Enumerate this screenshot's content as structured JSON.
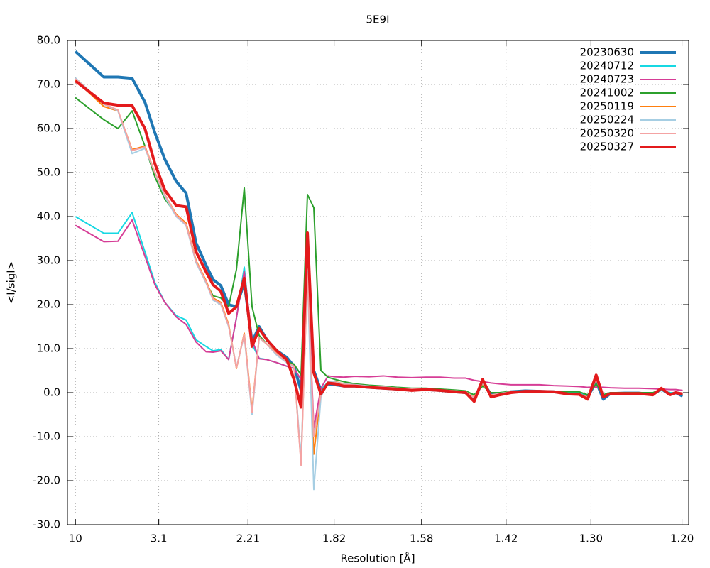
{
  "chart_data": {
    "type": "line",
    "title": "5E9I",
    "xlabel": "Resolution [Å]",
    "ylabel": "<I/sigI>",
    "grid": true,
    "legend": "top-right",
    "xlim": [
      0.001,
      0.702
    ],
    "ylim": [
      -30,
      80
    ],
    "xticks": [
      {
        "value": 0.01,
        "label": "10"
      },
      {
        "value": 0.10406,
        "label": "3.1"
      },
      {
        "value": 0.20475,
        "label": "2.21"
      },
      {
        "value": 0.3019,
        "label": "1.82"
      },
      {
        "value": 0.40058,
        "label": "1.58"
      },
      {
        "value": 0.49593,
        "label": "1.42"
      },
      {
        "value": 0.59172,
        "label": "1.30"
      },
      {
        "value": 0.69444,
        "label": "1.20"
      }
    ],
    "yticks": [
      {
        "value": -30,
        "label": "-30.0"
      },
      {
        "value": -20,
        "label": "-20.0"
      },
      {
        "value": -10,
        "label": "-10.0"
      },
      {
        "value": 0,
        "label": "0.0"
      },
      {
        "value": 10,
        "label": "10.0"
      },
      {
        "value": 20,
        "label": "20.0"
      },
      {
        "value": 30,
        "label": "30.0"
      },
      {
        "value": 40,
        "label": "40.0"
      },
      {
        "value": 50,
        "label": "50.0"
      },
      {
        "value": 60,
        "label": "60.0"
      },
      {
        "value": 70,
        "label": "70.0"
      },
      {
        "value": 80,
        "label": "80.0"
      }
    ],
    "x": [
      0.01,
      0.042,
      0.058,
      0.074,
      0.0884,
      0.0997,
      0.1109,
      0.1237,
      0.1349,
      0.1461,
      0.1573,
      0.1653,
      0.1741,
      0.1829,
      0.1917,
      0.2005,
      0.2093,
      0.2173,
      0.2261,
      0.2373,
      0.2485,
      0.2566,
      0.2646,
      0.2718,
      0.279,
      0.287,
      0.295,
      0.303,
      0.3126,
      0.3254,
      0.3414,
      0.3574,
      0.3734,
      0.3894,
      0.4055,
      0.4215,
      0.4375,
      0.4503,
      0.4599,
      0.4695,
      0.4791,
      0.4887,
      0.5015,
      0.5175,
      0.5335,
      0.5495,
      0.5656,
      0.5784,
      0.588,
      0.5976,
      0.6056,
      0.6136,
      0.6296,
      0.6456,
      0.6616,
      0.6712,
      0.6808,
      0.6872,
      0.6952
    ],
    "series": [
      {
        "name": "20230630",
        "color": "#1f77b4",
        "width": 4,
        "values": [
          77.5,
          71.7,
          71.7,
          71.4,
          66,
          59,
          53,
          48,
          45.3,
          34,
          29,
          25.7,
          24.3,
          20,
          19.5,
          25,
          11.5,
          15,
          12,
          9.5,
          8,
          6,
          0.5,
          27,
          5,
          0.5,
          2,
          1.8,
          1.5,
          1.5,
          1.2,
          1,
          0.8,
          0.6,
          0.7,
          0.5,
          0.2,
          0,
          -1.5,
          2.5,
          -0.5,
          -0.3,
          0.2,
          0.4,
          0.3,
          0.2,
          -0.2,
          -0.3,
          -1,
          2.5,
          -1.5,
          -0.2,
          -0.1,
          -0.1,
          -0.4,
          0.8,
          -0.4,
          0,
          -0.8
        ]
      },
      {
        "name": "20240712",
        "color": "#17d8e3",
        "width": 2,
        "values": [
          40,
          36.2,
          36.2,
          40.9,
          32,
          25,
          20.5,
          17.5,
          16.5,
          12,
          10.5,
          9.5,
          9.8,
          7.5,
          17,
          28.5,
          11,
          7.8,
          7.5,
          6.8,
          6,
          5.5,
          3,
          27.5,
          -10,
          0.5,
          2.5,
          2,
          1.5,
          1.5,
          1.2,
          1,
          0.9,
          0.6,
          0.7,
          0.6,
          0.3,
          0.2,
          -0.5,
          1.5,
          0,
          0,
          0.2,
          0.3,
          0.3,
          0.2,
          0,
          0,
          -0.5,
          2,
          -0.5,
          0,
          0,
          0,
          -0.2,
          0.5,
          0,
          0,
          -0.2
        ]
      },
      {
        "name": "20240723",
        "color": "#d63d96",
        "width": 2,
        "values": [
          38,
          34.3,
          34.4,
          39.2,
          31,
          24.5,
          20.5,
          17.2,
          15.5,
          11.5,
          9.3,
          9.2,
          9.5,
          7.5,
          17,
          27.5,
          12,
          7.7,
          7.5,
          6.8,
          6,
          5.5,
          3,
          27,
          -8,
          1,
          3.8,
          3.6,
          3.5,
          3.7,
          3.6,
          3.8,
          3.5,
          3.4,
          3.5,
          3.5,
          3.3,
          3.3,
          2.8,
          2.5,
          2.2,
          2,
          1.8,
          1.8,
          1.8,
          1.6,
          1.5,
          1.4,
          1.2,
          1.3,
          1.2,
          1.1,
          1,
          1,
          0.9,
          0.8,
          0.7,
          0.7,
          0.5
        ]
      },
      {
        "name": "20241002",
        "color": "#2ca02c",
        "width": 2,
        "values": [
          67,
          62,
          60,
          64,
          56,
          49,
          44,
          40.5,
          38,
          30,
          25,
          22,
          21.5,
          19.5,
          28,
          46.5,
          19.5,
          13,
          11,
          9,
          7,
          6.5,
          4,
          45,
          42,
          5,
          3.5,
          3,
          2.5,
          2,
          1.7,
          1.5,
          1.2,
          1,
          1,
          0.8,
          0.6,
          0.4,
          -0.5,
          1.5,
          0,
          0,
          0.3,
          0.4,
          0.3,
          0.3,
          0.2,
          0.2,
          -0.5,
          2,
          -0.5,
          0,
          0,
          0,
          0,
          0.8,
          -0.2,
          0,
          -0.5
        ]
      },
      {
        "name": "20250119",
        "color": "#ff7f0e",
        "width": 2,
        "values": [
          71,
          65,
          64,
          55.2,
          56,
          50,
          45,
          40.5,
          38.5,
          30,
          25.5,
          21.5,
          20.5,
          15.5,
          5.5,
          13.5,
          -4,
          12.5,
          11,
          9,
          7,
          6,
          -16,
          27.5,
          -14,
          0,
          2.5,
          2.5,
          2,
          1.8,
          1.5,
          1.3,
          1,
          0.8,
          0.8,
          0.6,
          0.4,
          0.2,
          -1,
          2,
          -0.5,
          -0.2,
          0.2,
          0.3,
          0.3,
          0.2,
          -0.2,
          -0.3,
          -1,
          3,
          -0.8,
          -0.2,
          -0.2,
          -0.2,
          -0.4,
          1,
          -0.4,
          0,
          -0.3
        ]
      },
      {
        "name": "20250224",
        "color": "#a6cee3",
        "width": 2,
        "values": [
          71.5,
          65.5,
          64,
          54.3,
          55.5,
          50,
          44.5,
          40,
          38,
          29.5,
          25,
          21,
          20,
          15,
          5.8,
          13,
          -5,
          12.5,
          11,
          8.5,
          6.8,
          5.8,
          -15,
          27.5,
          -22,
          -1,
          2.5,
          2.4,
          2,
          1.8,
          1.5,
          1.3,
          1,
          0.8,
          0.8,
          0.6,
          0.4,
          0.2,
          -1.2,
          2.2,
          -0.6,
          -0.2,
          0.2,
          0.3,
          0.3,
          0.2,
          -0.2,
          -0.3,
          -1.2,
          3.2,
          -0.9,
          -0.2,
          -0.2,
          -0.2,
          -0.4,
          1,
          -0.4,
          0,
          -0.3
        ]
      },
      {
        "name": "20250320",
        "color": "#f4a3a3",
        "width": 2,
        "values": [
          71.3,
          65.6,
          64.2,
          55,
          55.8,
          50,
          45,
          40.3,
          38.2,
          29.8,
          25.2,
          21.3,
          20.2,
          15.2,
          5.6,
          13.3,
          -4.5,
          12.6,
          11,
          8.8,
          7,
          6,
          -16.5,
          27,
          -10,
          -0.5,
          2.3,
          2.3,
          1.9,
          1.7,
          1.4,
          1.2,
          1,
          0.8,
          0.8,
          0.6,
          0.4,
          0.2,
          -1.1,
          2.4,
          -0.6,
          -0.3,
          0.1,
          0.3,
          0.3,
          0.2,
          -0.2,
          -0.3,
          -1.1,
          3.1,
          -0.8,
          -0.2,
          -0.2,
          -0.2,
          -0.4,
          1.1,
          -0.4,
          0,
          -0.3
        ]
      },
      {
        "name": "20250327",
        "color": "#e31a1c",
        "width": 4,
        "values": [
          70.8,
          65.8,
          65.3,
          65.2,
          60,
          52,
          46,
          42.5,
          42.2,
          32,
          27.5,
          24.5,
          23,
          18,
          19.5,
          26,
          10.5,
          14.5,
          12,
          9.5,
          7.5,
          3,
          -3.3,
          36.3,
          4.5,
          -0.3,
          2.2,
          2,
          1.5,
          1.5,
          1.2,
          1,
          0.8,
          0.5,
          0.7,
          0.5,
          0.2,
          0,
          -2,
          3,
          -1,
          -0.5,
          0,
          0.3,
          0.3,
          0.2,
          -0.3,
          -0.4,
          -1.5,
          4,
          -1,
          -0.2,
          -0.2,
          -0.2,
          -0.5,
          1,
          -0.5,
          0,
          -0.3
        ]
      }
    ]
  }
}
